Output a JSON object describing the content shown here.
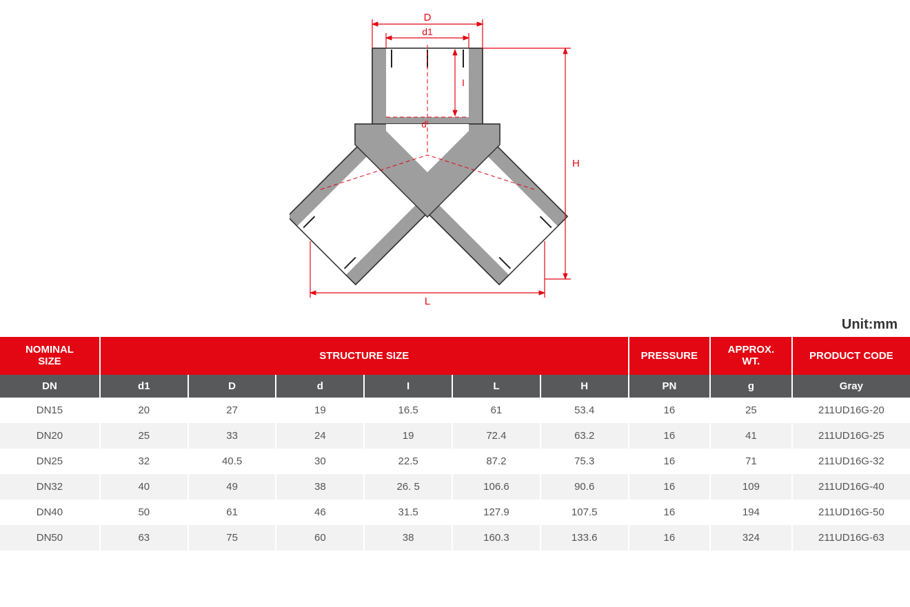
{
  "unit_label": "Unit:mm",
  "diagram": {
    "labels": {
      "D": "D",
      "d1": "d1",
      "I": "I",
      "d": "d",
      "L": "L",
      "H": "H"
    },
    "colors": {
      "fill": "#9e9e9e",
      "stroke": "#333333",
      "dim": "#e30613",
      "dash": "#e30613",
      "bg": "#ffffff"
    }
  },
  "table": {
    "header_bg": "#e30613",
    "subheader_bg": "#58595b",
    "header_fg": "#ffffff",
    "row_odd_bg": "#ffffff",
    "row_even_bg": "#f2f2f2",
    "main_headers": {
      "nominal": "NOMINAL\nSIZE",
      "structure": "STRUCTURE SIZE",
      "pressure": "PRESSURE",
      "wt": "APPROX.\nWT.",
      "code": "PRODUCT CODE"
    },
    "sub_headers": [
      "DN",
      "d1",
      "D",
      "d",
      "I",
      "L",
      "H",
      "PN",
      "g",
      "Gray"
    ],
    "rows": [
      [
        "DN15",
        "20",
        "27",
        "19",
        "16.5",
        "61",
        "53.4",
        "16",
        "25",
        "211UD16G-20"
      ],
      [
        "DN20",
        "25",
        "33",
        "24",
        "19",
        "72.4",
        "63.2",
        "16",
        "41",
        "211UD16G-25"
      ],
      [
        "DN25",
        "32",
        "40.5",
        "30",
        "22.5",
        "87.2",
        "75.3",
        "16",
        "71",
        "211UD16G-32"
      ],
      [
        "DN32",
        "40",
        "49",
        "38",
        "26. 5",
        "106.6",
        "90.6",
        "16",
        "109",
        "211UD16G-40"
      ],
      [
        "DN40",
        "50",
        "61",
        "46",
        "31.5",
        "127.9",
        "107.5",
        "16",
        "194",
        "211UD16G-50"
      ],
      [
        "DN50",
        "63",
        "75",
        "60",
        "38",
        "160.3",
        "133.6",
        "16",
        "324",
        "211UD16G-63"
      ]
    ]
  }
}
